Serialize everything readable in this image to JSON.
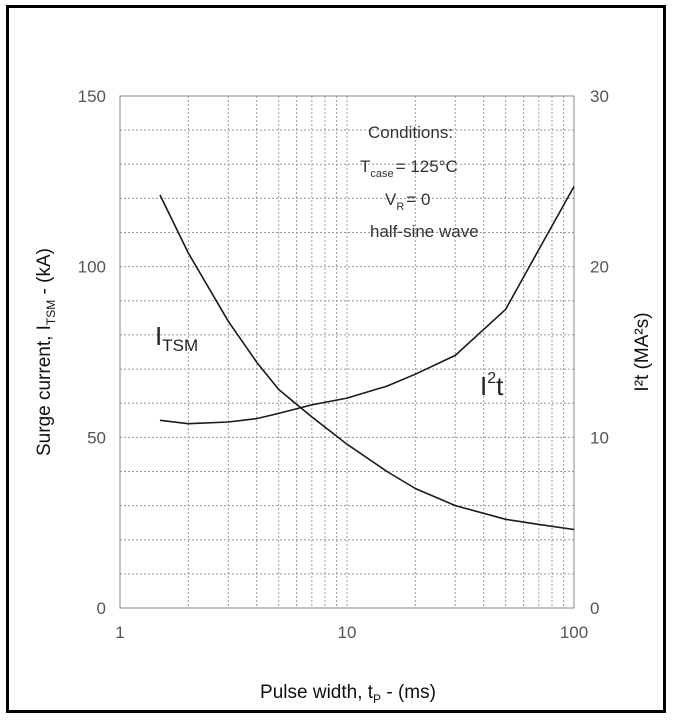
{
  "chart_data": {
    "type": "line",
    "xscale": "log",
    "xlim": [
      1,
      100
    ],
    "x_ticks": [
      "1",
      "10",
      "100"
    ],
    "xlabel": "Pulse width, t",
    "xlabel_sub": "P",
    "xlabel_suffix": " - (ms)",
    "ylim": [
      0,
      150
    ],
    "y_ticks": [
      "0",
      "50",
      "100",
      "150"
    ],
    "ylabel": "Surge current, I",
    "ylabel_sub": "TSM",
    "ylabel_suffix": " - (kA)",
    "y2lim": [
      0,
      30
    ],
    "y2_ticks": [
      "0",
      "10",
      "20",
      "30"
    ],
    "y2label": "I²t (MA²s)",
    "grid": true,
    "annotations": {
      "title": "Conditions:",
      "line1_main": "T",
      "line1_sub": "case",
      "line1_value": "= 125°C",
      "line2_main": "V",
      "line2_sub": "R",
      "line2_value": "= 0",
      "line3": "half-sine wave"
    },
    "series": [
      {
        "name": "I",
        "name_sub": "TSM",
        "axis": "left",
        "x": [
          1.5,
          2,
          3,
          4,
          5,
          7,
          10,
          15,
          20,
          30,
          50,
          70,
          100
        ],
        "y": [
          121,
          104,
          84,
          72,
          64,
          56,
          48,
          40,
          35,
          30,
          26,
          24.5,
          23
        ]
      },
      {
        "name": "I",
        "name_sup": "2",
        "name_suffix": "t",
        "axis": "right",
        "x": [
          1.5,
          2,
          3,
          4,
          5,
          7,
          10,
          15,
          20,
          30,
          50,
          70,
          100
        ],
        "y": [
          11.0,
          10.8,
          10.9,
          11.1,
          11.4,
          11.9,
          12.3,
          13.0,
          13.7,
          14.8,
          17.5,
          21.0,
          24.7
        ]
      }
    ]
  }
}
